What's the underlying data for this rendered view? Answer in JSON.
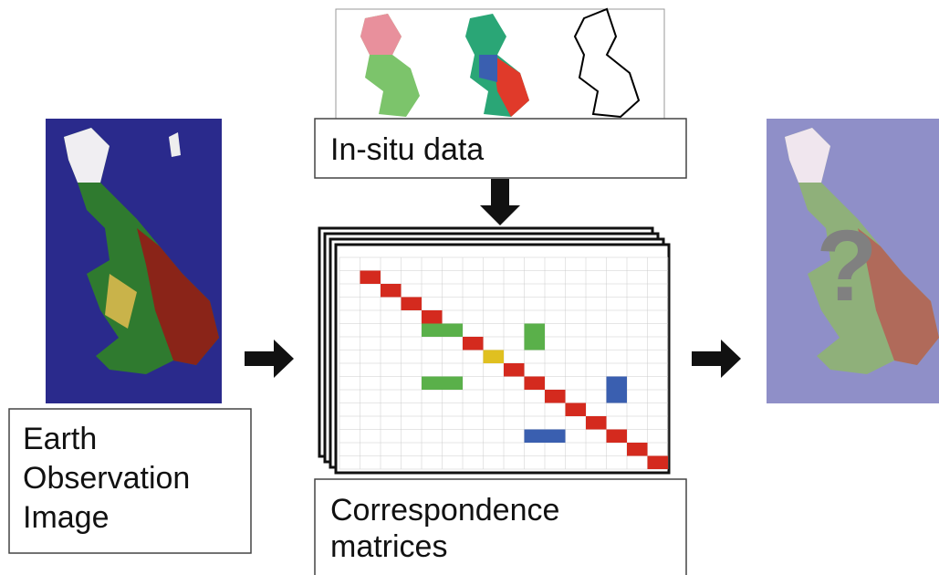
{
  "nodes": [
    {
      "label": [
        "Earth",
        "Observation",
        "Image"
      ]
    },
    {
      "label": [
        "In-situ data"
      ]
    },
    {
      "label": [
        "Correspondence",
        "matrices"
      ]
    },
    {
      "label": [
        "?"
      ]
    }
  ]
}
